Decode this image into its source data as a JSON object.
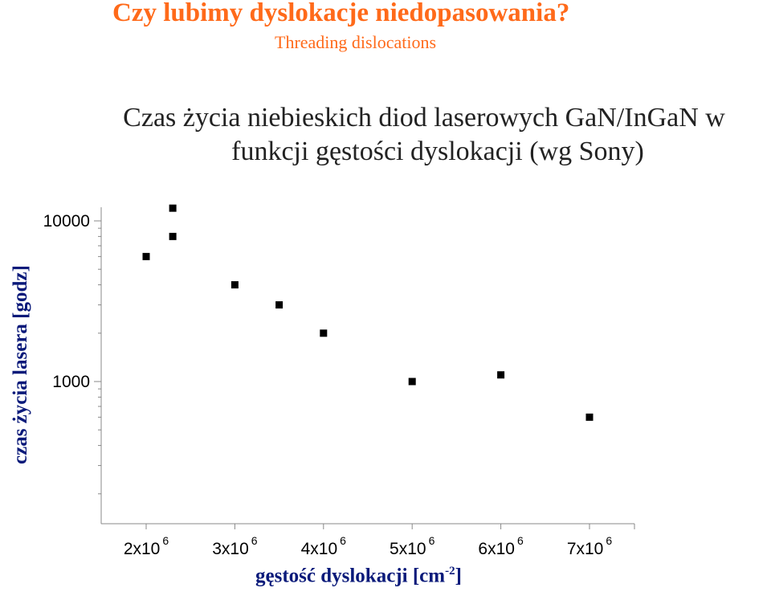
{
  "slide": {
    "title": "Czy lubimy dyslokacje niedopasowania?",
    "subtitle": "Threading dislocations"
  },
  "chart_data": {
    "type": "scatter",
    "title_line1": "Czas życia niebieskich diod laserowych GaN/InGaN w",
    "title_line2": "funkcji gęstości dyslokacji (wg Sony)",
    "xlabel_main": "gęstość dyslokacji [cm",
    "xlabel_sup": "-2",
    "xlabel_end": "]",
    "ylabel": "czas życia lasera [godz]",
    "yscale": "log",
    "ylim": [
      200,
      15000
    ],
    "xlim": [
      1500000,
      7500000
    ],
    "x_ticks": [
      {
        "base": "2x10",
        "exp": "6",
        "value": 2000000
      },
      {
        "base": "3x10",
        "exp": "6",
        "value": 3000000
      },
      {
        "base": "4x10",
        "exp": "6",
        "value": 4000000
      },
      {
        "base": "5x10",
        "exp": "6",
        "value": 5000000
      },
      {
        "base": "6x10",
        "exp": "6",
        "value": 6000000
      },
      {
        "base": "7x10",
        "exp": "6",
        "value": 7000000
      }
    ],
    "y_ticks": [
      {
        "label": "10000",
        "value": 10000
      },
      {
        "label": "1000",
        "value": 1000
      }
    ],
    "series": [
      {
        "points": [
          {
            "x": 2000000,
            "y": 6000
          },
          {
            "x": 2300000,
            "y": 12000
          },
          {
            "x": 2300000,
            "y": 8000
          },
          {
            "x": 3000000,
            "y": 4000
          },
          {
            "x": 3500000,
            "y": 3000
          },
          {
            "x": 4000000,
            "y": 2000
          },
          {
            "x": 5000000,
            "y": 1000
          },
          {
            "x": 6000000,
            "y": 1100
          },
          {
            "x": 7000000,
            "y": 600
          }
        ]
      }
    ],
    "marker_color": "#000000",
    "grid": false
  }
}
